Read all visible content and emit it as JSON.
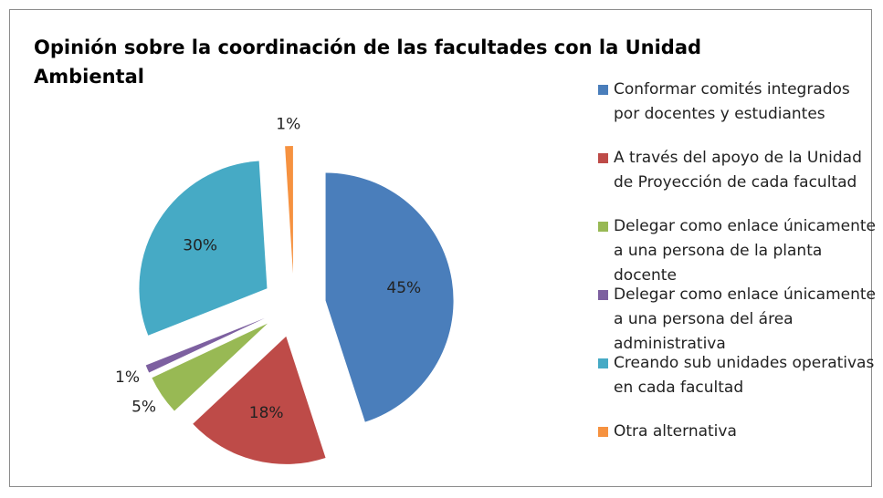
{
  "chart_data": {
    "type": "pie",
    "title": "Opinión sobre la coordinación de las facultades con la Unidad Ambiental",
    "categories": [
      "Conformar comités integrados por docentes y estudiantes",
      "A través del apoyo de la Unidad de Proyección de cada facultad",
      "Delegar como enlace únicamente a una persona de la planta docente",
      "Delegar como enlace únicamente a una persona del área administrativa",
      "Creando sub unidades operativas en cada facultad",
      "Otra alternativa"
    ],
    "values": [
      45,
      18,
      5,
      1,
      30,
      1
    ],
    "value_labels": [
      "45%",
      "18%",
      "5%",
      "1%",
      "30%",
      "1%"
    ],
    "colors": [
      "#4a7ebb",
      "#be4b48",
      "#98b954",
      "#7d60a0",
      "#46aac5",
      "#f69240"
    ],
    "legend": "right"
  }
}
